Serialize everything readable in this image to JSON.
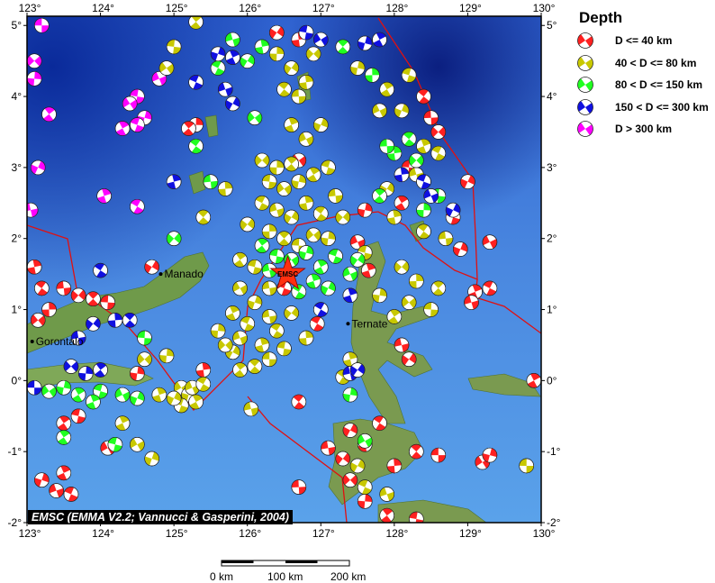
{
  "legend": {
    "title": "Depth",
    "items": [
      {
        "label": "D <= 40 km",
        "color": "#ff2020"
      },
      {
        "label": "40 < D <= 80 km",
        "color": "#c8c800"
      },
      {
        "label": "80 < D <= 150 km",
        "color": "#20ff20"
      },
      {
        "label": "150 < D <= 300 km",
        "color": "#1010e0"
      },
      {
        "label": "D > 300 km",
        "color": "#ff00ff"
      }
    ]
  },
  "axes": {
    "lon_range": [
      123,
      130
    ],
    "lat_range": [
      -2,
      5.13
    ],
    "lon_ticks": [
      "123°",
      "124°",
      "125°",
      "126°",
      "127°",
      "128°",
      "129°",
      "130°"
    ],
    "lat_ticks": [
      "5°",
      "4°",
      "3°",
      "2°",
      "1°",
      "0°",
      "-1°",
      "-2°"
    ]
  },
  "credit": "EMSC (EMMA V2.2; Vannucci & Gasperini, 2004)",
  "epicenter": {
    "label": "EMSC",
    "lon": 126.55,
    "lat": 1.5,
    "color": "#ff3010"
  },
  "cities": [
    {
      "name": "Manado",
      "lon": 124.82,
      "lat": 1.5
    },
    {
      "name": "Gorontalo",
      "lon": 123.07,
      "lat": 0.55
    },
    {
      "name": "Ternate",
      "lon": 127.37,
      "lat": 0.8
    }
  ],
  "scale_bar": {
    "labels": [
      "0 km",
      "100 km",
      "200 km"
    ]
  },
  "events": [
    [
      123.2,
      5.0,
      4
    ],
    [
      123.1,
      4.5,
      4
    ],
    [
      123.1,
      4.25,
      4
    ],
    [
      123.3,
      3.75,
      4
    ],
    [
      124.5,
      4.0,
      4
    ],
    [
      124.4,
      3.9,
      4
    ],
    [
      124.6,
      3.7,
      4
    ],
    [
      124.3,
      3.55,
      4
    ],
    [
      124.5,
      3.6,
      4
    ],
    [
      124.8,
      4.25,
      4
    ],
    [
      123.15,
      3.0,
      4
    ],
    [
      124.05,
      2.6,
      4
    ],
    [
      124.5,
      2.45,
      4
    ],
    [
      123.05,
      2.4,
      4
    ],
    [
      126.4,
      4.9,
      0
    ],
    [
      126.7,
      4.8,
      0
    ],
    [
      128.4,
      4.0,
      0
    ],
    [
      128.5,
      3.7,
      0
    ],
    [
      128.6,
      3.5,
      0
    ],
    [
      125.3,
      3.6,
      0
    ],
    [
      125.2,
      3.55,
      0
    ],
    [
      128.2,
      3.0,
      0
    ],
    [
      126.7,
      3.1,
      0
    ],
    [
      127.6,
      2.4,
      0
    ],
    [
      128.1,
      2.5,
      0
    ],
    [
      128.8,
      2.3,
      0
    ],
    [
      129.3,
      1.95,
      0
    ],
    [
      128.9,
      1.85,
      0
    ],
    [
      129.1,
      1.25,
      0
    ],
    [
      129.3,
      1.3,
      0
    ],
    [
      129.05,
      1.1,
      0
    ],
    [
      124.7,
      1.6,
      0
    ],
    [
      123.1,
      1.6,
      0
    ],
    [
      123.2,
      1.3,
      0
    ],
    [
      123.5,
      1.3,
      0
    ],
    [
      123.7,
      1.2,
      0
    ],
    [
      123.3,
      1.0,
      0
    ],
    [
      123.9,
      1.15,
      0
    ],
    [
      124.1,
      1.1,
      0
    ],
    [
      123.15,
      0.85,
      0
    ],
    [
      124.5,
      0.1,
      0
    ],
    [
      123.5,
      -0.6,
      0
    ],
    [
      123.7,
      -0.5,
      0
    ],
    [
      124.1,
      -0.95,
      0
    ],
    [
      123.2,
      -1.4,
      0
    ],
    [
      123.5,
      -1.3,
      0
    ],
    [
      123.6,
      -1.6,
      0
    ],
    [
      123.4,
      -1.55,
      0
    ],
    [
      127.4,
      -0.7,
      0
    ],
    [
      127.6,
      -0.9,
      0
    ],
    [
      127.8,
      -0.6,
      0
    ],
    [
      127.1,
      -0.95,
      0
    ],
    [
      127.3,
      -1.1,
      0
    ],
    [
      128.0,
      -1.2,
      0
    ],
    [
      128.3,
      -1.0,
      0
    ],
    [
      128.6,
      -1.05,
      0
    ],
    [
      127.4,
      -1.4,
      0
    ],
    [
      127.6,
      -1.7,
      0
    ],
    [
      127.9,
      -1.9,
      0
    ],
    [
      128.3,
      -1.95,
      0
    ],
    [
      129.2,
      -1.15,
      0
    ],
    [
      129.3,
      -1.05,
      0
    ],
    [
      129.9,
      0.0,
      0
    ],
    [
      126.5,
      1.3,
      0
    ],
    [
      127.5,
      1.95,
      0
    ],
    [
      129.0,
      2.8,
      0
    ],
    [
      127.65,
      1.55,
      0
    ],
    [
      126.95,
      0.8,
      0
    ],
    [
      128.1,
      0.5,
      0
    ],
    [
      128.2,
      0.3,
      0
    ],
    [
      125.4,
      0.15,
      0
    ],
    [
      126.7,
      -0.3,
      0
    ],
    [
      126.7,
      -1.5,
      0
    ],
    [
      126.2,
      3.1,
      1
    ],
    [
      126.4,
      3.0,
      1
    ],
    [
      126.6,
      3.05,
      1
    ],
    [
      126.3,
      2.8,
      1
    ],
    [
      126.5,
      2.7,
      1
    ],
    [
      126.7,
      2.8,
      1
    ],
    [
      126.9,
      2.9,
      1
    ],
    [
      127.1,
      3.0,
      1
    ],
    [
      126.8,
      3.4,
      1
    ],
    [
      127.0,
      3.6,
      1
    ],
    [
      126.6,
      3.6,
      1
    ],
    [
      126.2,
      2.5,
      1
    ],
    [
      126.4,
      2.4,
      1
    ],
    [
      126.6,
      2.3,
      1
    ],
    [
      126.8,
      2.5,
      1
    ],
    [
      127.0,
      2.35,
      1
    ],
    [
      127.2,
      2.6,
      1
    ],
    [
      127.3,
      2.3,
      1
    ],
    [
      126.3,
      2.1,
      1
    ],
    [
      126.5,
      2.0,
      1
    ],
    [
      126.7,
      1.9,
      1
    ],
    [
      126.9,
      2.05,
      1
    ],
    [
      127.1,
      2.0,
      1
    ],
    [
      125.9,
      1.7,
      1
    ],
    [
      126.1,
      1.6,
      1
    ],
    [
      125.9,
      1.3,
      1
    ],
    [
      126.1,
      1.1,
      1
    ],
    [
      125.8,
      0.95,
      1
    ],
    [
      126.0,
      0.8,
      1
    ],
    [
      125.9,
      0.6,
      1
    ],
    [
      125.8,
      0.4,
      1
    ],
    [
      126.2,
      0.5,
      1
    ],
    [
      126.4,
      0.7,
      1
    ],
    [
      126.3,
      0.9,
      1
    ],
    [
      126.6,
      0.95,
      1
    ],
    [
      126.8,
      0.6,
      1
    ],
    [
      126.1,
      0.2,
      1
    ],
    [
      126.3,
      0.3,
      1
    ],
    [
      125.7,
      0.5,
      1
    ],
    [
      125.6,
      0.7,
      1
    ],
    [
      125.9,
      0.15,
      1
    ],
    [
      126.5,
      0.45,
      1
    ],
    [
      125.1,
      -0.1,
      1
    ],
    [
      125.2,
      -0.2,
      1
    ],
    [
      125.3,
      -0.3,
      1
    ],
    [
      125.1,
      -0.35,
      1
    ],
    [
      125.25,
      -0.1,
      1
    ],
    [
      125.0,
      -0.25,
      1
    ],
    [
      124.8,
      -0.2,
      1
    ],
    [
      125.4,
      -0.05,
      1
    ],
    [
      126.05,
      -0.4,
      1
    ],
    [
      126.6,
      4.4,
      1
    ],
    [
      126.8,
      4.2,
      1
    ],
    [
      126.5,
      4.1,
      1
    ],
    [
      126.7,
      4.0,
      1
    ],
    [
      126.9,
      4.6,
      1
    ],
    [
      126.4,
      4.6,
      1
    ],
    [
      125.3,
      5.05,
      1
    ],
    [
      125.0,
      4.7,
      1
    ],
    [
      124.9,
      4.4,
      1
    ],
    [
      127.5,
      4.4,
      1
    ],
    [
      127.9,
      4.1,
      1
    ],
    [
      128.2,
      4.3,
      1
    ],
    [
      127.8,
      3.8,
      1
    ],
    [
      128.1,
      3.8,
      1
    ],
    [
      128.4,
      3.3,
      1
    ],
    [
      128.6,
      3.2,
      1
    ],
    [
      128.3,
      2.9,
      1
    ],
    [
      127.9,
      2.7,
      1
    ],
    [
      128.0,
      2.3,
      1
    ],
    [
      128.4,
      2.1,
      1
    ],
    [
      128.7,
      2.0,
      1
    ],
    [
      128.1,
      1.6,
      1
    ],
    [
      128.3,
      1.4,
      1
    ],
    [
      128.6,
      1.3,
      1
    ],
    [
      128.5,
      1.0,
      1
    ],
    [
      128.2,
      1.1,
      1
    ],
    [
      127.8,
      1.2,
      1
    ],
    [
      128.0,
      0.9,
      1
    ],
    [
      127.6,
      1.8,
      1
    ],
    [
      124.5,
      -0.9,
      1
    ],
    [
      124.7,
      -1.1,
      1
    ],
    [
      124.3,
      -0.6,
      1
    ],
    [
      127.6,
      -1.5,
      1
    ],
    [
      127.9,
      -1.6,
      1
    ],
    [
      127.5,
      -1.2,
      1
    ],
    [
      127.4,
      0.3,
      1
    ],
    [
      127.3,
      0.05,
      1
    ],
    [
      126.3,
      1.3,
      1
    ],
    [
      126.0,
      2.2,
      1
    ],
    [
      125.7,
      2.7,
      1
    ],
    [
      125.4,
      2.3,
      1
    ],
    [
      129.8,
      -1.2,
      1
    ],
    [
      124.6,
      0.3,
      1
    ],
    [
      124.9,
      0.35,
      1
    ],
    [
      126.2,
      1.9,
      2
    ],
    [
      126.4,
      1.75,
      2
    ],
    [
      126.6,
      1.7,
      2
    ],
    [
      126.8,
      1.8,
      2
    ],
    [
      127.0,
      1.6,
      2
    ],
    [
      127.2,
      1.75,
      2
    ],
    [
      127.4,
      1.5,
      2
    ],
    [
      127.1,
      1.3,
      2
    ],
    [
      126.9,
      1.4,
      2
    ],
    [
      126.7,
      1.25,
      2
    ],
    [
      126.3,
      1.55,
      2
    ],
    [
      127.5,
      1.7,
      2
    ],
    [
      128.0,
      3.2,
      2
    ],
    [
      128.2,
      3.4,
      2
    ],
    [
      127.9,
      3.3,
      2
    ],
    [
      128.3,
      3.1,
      2
    ],
    [
      128.4,
      2.4,
      2
    ],
    [
      127.8,
      2.6,
      2
    ],
    [
      128.6,
      2.6,
      2
    ],
    [
      123.3,
      -0.15,
      2
    ],
    [
      123.5,
      -0.1,
      2
    ],
    [
      123.7,
      -0.2,
      2
    ],
    [
      124.0,
      -0.15,
      2
    ],
    [
      124.3,
      -0.2,
      2
    ],
    [
      124.5,
      -0.25,
      2
    ],
    [
      123.9,
      -0.3,
      2
    ],
    [
      125.6,
      4.4,
      2
    ],
    [
      125.8,
      4.8,
      2
    ],
    [
      126.0,
      4.5,
      2
    ],
    [
      126.2,
      4.7,
      2
    ],
    [
      125.3,
      3.3,
      2
    ],
    [
      125.5,
      2.8,
      2
    ],
    [
      125.0,
      2.0,
      2
    ],
    [
      127.7,
      4.3,
      2
    ],
    [
      127.3,
      4.7,
      2
    ],
    [
      124.6,
      0.6,
      2
    ],
    [
      126.1,
      3.7,
      2
    ],
    [
      127.4,
      -0.2,
      2
    ],
    [
      123.5,
      -0.8,
      2
    ],
    [
      124.2,
      -0.9,
      2
    ],
    [
      127.6,
      -0.85,
      2
    ],
    [
      125.6,
      4.6,
      3
    ],
    [
      125.8,
      4.55,
      3
    ],
    [
      125.3,
      4.2,
      3
    ],
    [
      125.7,
      4.1,
      3
    ],
    [
      125.8,
      3.9,
      3
    ],
    [
      125.0,
      2.8,
      3
    ],
    [
      124.0,
      1.55,
      3
    ],
    [
      123.7,
      0.6,
      3
    ],
    [
      123.9,
      0.8,
      3
    ],
    [
      124.2,
      0.85,
      3
    ],
    [
      124.4,
      0.85,
      3
    ],
    [
      123.1,
      -0.1,
      3
    ],
    [
      123.6,
      0.2,
      3
    ],
    [
      123.8,
      0.1,
      3
    ],
    [
      124.0,
      0.15,
      3
    ],
    [
      126.8,
      4.9,
      3
    ],
    [
      127.0,
      4.8,
      3
    ],
    [
      127.6,
      4.75,
      3
    ],
    [
      127.8,
      4.8,
      3
    ],
    [
      128.4,
      2.8,
      3
    ],
    [
      128.5,
      2.6,
      3
    ],
    [
      128.8,
      2.4,
      3
    ],
    [
      127.4,
      1.2,
      3
    ],
    [
      127.0,
      1.0,
      3
    ],
    [
      127.4,
      0.1,
      3
    ],
    [
      127.5,
      0.15,
      3
    ],
    [
      128.1,
      2.9,
      3
    ]
  ]
}
